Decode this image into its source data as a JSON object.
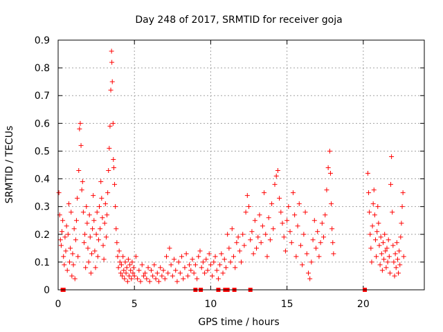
{
  "chart_data": {
    "type": "scatter",
    "title": "Day 248 of 2017, SRMTID for receiver goja",
    "xlabel": "GPS time / hours",
    "ylabel": "SRMTID / TECUs",
    "xlim": [
      0,
      24
    ],
    "ylim": [
      0,
      0.9
    ],
    "x_ticks": [
      0,
      5,
      10,
      15,
      20
    ],
    "y_ticks": [
      0,
      0.1,
      0.2,
      0.3,
      0.4,
      0.5,
      0.6,
      0.7,
      0.8,
      0.9
    ],
    "x_tick_labels": [
      "0",
      "5",
      "10",
      "15",
      "20"
    ],
    "y_tick_labels": [
      "0",
      "0.1",
      "0.2",
      "0.3",
      "0.4",
      "0.5",
      "0.6",
      "0.7",
      "0.8",
      "0.9"
    ],
    "grid": true,
    "marker": "+",
    "color": "#ff0000",
    "series": [
      {
        "name": "SRMTID",
        "points": [
          [
            0.05,
            0.35
          ],
          [
            0.1,
            0.27
          ],
          [
            0.15,
            0.18
          ],
          [
            0.2,
            0.16
          ],
          [
            0.25,
            0.21
          ],
          [
            0.3,
            0.25
          ],
          [
            0.35,
            0.12
          ],
          [
            0.4,
            0.09
          ],
          [
            0.45,
            0.19
          ],
          [
            0.5,
            0.14
          ],
          [
            0.55,
            0.23
          ],
          [
            0.6,
            0.07
          ],
          [
            0.65,
            0.2
          ],
          [
            0.7,
            0.31
          ],
          [
            0.75,
            0.1
          ],
          [
            0.8,
            0.15
          ],
          [
            0.85,
            0.28
          ],
          [
            0.9,
            0.05
          ],
          [
            0.95,
            0.13
          ],
          [
            1.0,
            0.09
          ],
          [
            1.05,
            0.22
          ],
          [
            1.1,
            0.04
          ],
          [
            1.15,
            0.18
          ],
          [
            1.2,
            0.25
          ],
          [
            1.25,
            0.33
          ],
          [
            1.3,
            0.12
          ],
          [
            1.35,
            0.43
          ],
          [
            1.4,
            0.58
          ],
          [
            1.45,
            0.6
          ],
          [
            1.5,
            0.52
          ],
          [
            1.55,
            0.36
          ],
          [
            1.6,
            0.39
          ],
          [
            1.65,
            0.28
          ],
          [
            1.7,
            0.17
          ],
          [
            1.75,
            0.2
          ],
          [
            1.8,
            0.08
          ],
          [
            1.85,
            0.3
          ],
          [
            1.9,
            0.24
          ],
          [
            1.95,
            0.15
          ],
          [
            2.0,
            0.1
          ],
          [
            2.05,
            0.27
          ],
          [
            2.1,
            0.19
          ],
          [
            2.15,
            0.06
          ],
          [
            2.2,
            0.13
          ],
          [
            2.25,
            0.22
          ],
          [
            2.3,
            0.34
          ],
          [
            2.35,
            0.25
          ],
          [
            2.4,
            0.14
          ],
          [
            2.45,
            0.08
          ],
          [
            2.5,
            0.2
          ],
          [
            2.55,
            0.28
          ],
          [
            2.6,
            0.12
          ],
          [
            2.65,
            0.18
          ],
          [
            2.7,
            0.3
          ],
          [
            2.75,
            0.22
          ],
          [
            2.8,
            0.39
          ],
          [
            2.85,
            0.33
          ],
          [
            2.9,
            0.26
          ],
          [
            2.95,
            0.16
          ],
          [
            3.0,
            0.11
          ],
          [
            3.05,
            0.24
          ],
          [
            3.1,
            0.31
          ],
          [
            3.15,
            0.19
          ],
          [
            3.2,
            0.27
          ],
          [
            3.25,
            0.35
          ],
          [
            3.3,
            0.43
          ],
          [
            3.35,
            0.51
          ],
          [
            3.4,
            0.59
          ],
          [
            3.45,
            0.72
          ],
          [
            3.5,
            0.86
          ],
          [
            3.52,
            0.82
          ],
          [
            3.55,
            0.75
          ],
          [
            3.6,
            0.6
          ],
          [
            3.62,
            0.47
          ],
          [
            3.65,
            0.44
          ],
          [
            3.7,
            0.38
          ],
          [
            3.75,
            0.3
          ],
          [
            3.8,
            0.22
          ],
          [
            3.85,
            0.17
          ],
          [
            3.9,
            0.12
          ],
          [
            3.95,
            0.08
          ],
          [
            4.0,
            0.14
          ],
          [
            4.05,
            0.1
          ],
          [
            4.1,
            0.06
          ],
          [
            4.15,
            0.09
          ],
          [
            4.2,
            0.05
          ],
          [
            4.25,
            0.12
          ],
          [
            4.3,
            0.07
          ],
          [
            4.35,
            0.04
          ],
          [
            4.4,
            0.1
          ],
          [
            4.45,
            0.06
          ],
          [
            4.5,
            0.08
          ],
          [
            4.55,
            0.03
          ],
          [
            4.6,
            0.11
          ],
          [
            4.65,
            0.05
          ],
          [
            4.7,
            0.09
          ],
          [
            4.75,
            0.07
          ],
          [
            4.8,
            0.04
          ],
          [
            4.85,
            0.1
          ],
          [
            4.9,
            0.06
          ],
          [
            4.95,
            0.08
          ],
          [
            5.0,
            0.05
          ],
          [
            5.1,
            0.12
          ],
          [
            5.2,
            0.04
          ],
          [
            5.3,
            0.07
          ],
          [
            5.4,
            0.03
          ],
          [
            5.5,
            0.09
          ],
          [
            5.6,
            0.05
          ],
          [
            5.7,
            0.06
          ],
          [
            5.8,
            0.04
          ],
          [
            5.9,
            0.08
          ],
          [
            6.0,
            0.03
          ],
          [
            6.1,
            0.07
          ],
          [
            6.2,
            0.05
          ],
          [
            6.3,
            0.09
          ],
          [
            6.4,
            0.04
          ],
          [
            6.5,
            0.06
          ],
          [
            6.6,
            0.03
          ],
          [
            6.7,
            0.08
          ],
          [
            6.8,
            0.05
          ],
          [
            6.9,
            0.07
          ],
          [
            7.0,
            0.04
          ],
          [
            7.1,
            0.12
          ],
          [
            7.2,
            0.06
          ],
          [
            7.3,
            0.15
          ],
          [
            7.4,
            0.09
          ],
          [
            7.5,
            0.05
          ],
          [
            7.6,
            0.11
          ],
          [
            7.7,
            0.07
          ],
          [
            7.8,
            0.03
          ],
          [
            7.9,
            0.1
          ],
          [
            8.0,
            0.06
          ],
          [
            8.1,
            0.12
          ],
          [
            8.2,
            0.04
          ],
          [
            8.3,
            0.08
          ],
          [
            8.4,
            0.13
          ],
          [
            8.5,
            0.05
          ],
          [
            8.6,
            0.09
          ],
          [
            8.7,
            0.07
          ],
          [
            8.8,
            0.11
          ],
          [
            8.9,
            0.06
          ],
          [
            9.0,
            0.09
          ],
          [
            9.1,
            0.04
          ],
          [
            9.2,
            0.12
          ],
          [
            9.3,
            0.14
          ],
          [
            9.4,
            0.08
          ],
          [
            9.5,
            0.1
          ],
          [
            9.6,
            0.06
          ],
          [
            9.7,
            0.11
          ],
          [
            9.8,
            0.07
          ],
          [
            9.9,
            0.13
          ],
          [
            10.0,
            0.09
          ],
          [
            10.1,
            0.05
          ],
          [
            10.2,
            0.1
          ],
          [
            10.3,
            0.12
          ],
          [
            10.4,
            0.07
          ],
          [
            10.5,
            0.04
          ],
          [
            10.6,
            0.09
          ],
          [
            10.7,
            0.13
          ],
          [
            10.8,
            0.06
          ],
          [
            10.9,
            0.11
          ],
          [
            11.0,
            0.08
          ],
          [
            11.1,
            0.2
          ],
          [
            11.2,
            0.15
          ],
          [
            11.3,
            0.1
          ],
          [
            11.4,
            0.22
          ],
          [
            11.5,
            0.12
          ],
          [
            11.6,
            0.08
          ],
          [
            11.7,
            0.17
          ],
          [
            11.8,
            0.19
          ],
          [
            11.9,
            0.14
          ],
          [
            12.0,
            0.1
          ],
          [
            12.1,
            0.2
          ],
          [
            12.2,
            0.16
          ],
          [
            12.3,
            0.28
          ],
          [
            12.4,
            0.34
          ],
          [
            12.5,
            0.3
          ],
          [
            12.6,
            0.18
          ],
          [
            12.7,
            0.21
          ],
          [
            12.8,
            0.13
          ],
          [
            12.9,
            0.25
          ],
          [
            13.0,
            0.15
          ],
          [
            13.1,
            0.19
          ],
          [
            13.2,
            0.27
          ],
          [
            13.3,
            0.17
          ],
          [
            13.4,
            0.23
          ],
          [
            13.5,
            0.35
          ],
          [
            13.6,
            0.2
          ],
          [
            13.7,
            0.12
          ],
          [
            13.8,
            0.26
          ],
          [
            13.9,
            0.18
          ],
          [
            14.0,
            0.31
          ],
          [
            14.1,
            0.22
          ],
          [
            14.2,
            0.38
          ],
          [
            14.3,
            0.41
          ],
          [
            14.4,
            0.43
          ],
          [
            14.5,
            0.33
          ],
          [
            14.6,
            0.28
          ],
          [
            14.7,
            0.24
          ],
          [
            14.8,
            0.19
          ],
          [
            14.9,
            0.14
          ],
          [
            15.0,
            0.25
          ],
          [
            15.1,
            0.3
          ],
          [
            15.2,
            0.21
          ],
          [
            15.3,
            0.17
          ],
          [
            15.4,
            0.35
          ],
          [
            15.5,
            0.27
          ],
          [
            15.6,
            0.12
          ],
          [
            15.7,
            0.23
          ],
          [
            15.8,
            0.31
          ],
          [
            15.9,
            0.16
          ],
          [
            16.0,
            0.09
          ],
          [
            16.1,
            0.2
          ],
          [
            16.2,
            0.28
          ],
          [
            16.3,
            0.13
          ],
          [
            16.4,
            0.06
          ],
          [
            16.5,
            0.04
          ],
          [
            16.6,
            0.1
          ],
          [
            16.7,
            0.18
          ],
          [
            16.8,
            0.25
          ],
          [
            16.9,
            0.15
          ],
          [
            17.0,
            0.21
          ],
          [
            17.1,
            0.12
          ],
          [
            17.2,
            0.17
          ],
          [
            17.3,
            0.24
          ],
          [
            17.4,
            0.19
          ],
          [
            17.5,
            0.27
          ],
          [
            17.6,
            0.36
          ],
          [
            17.7,
            0.44
          ],
          [
            17.8,
            0.5
          ],
          [
            17.85,
            0.42
          ],
          [
            17.9,
            0.31
          ],
          [
            17.95,
            0.22
          ],
          [
            18.0,
            0.17
          ],
          [
            18.05,
            0.13
          ],
          [
            20.3,
            0.42
          ],
          [
            20.35,
            0.35
          ],
          [
            20.4,
            0.28
          ],
          [
            20.45,
            0.2
          ],
          [
            20.5,
            0.15
          ],
          [
            20.55,
            0.1
          ],
          [
            20.6,
            0.23
          ],
          [
            20.65,
            0.31
          ],
          [
            20.7,
            0.36
          ],
          [
            20.75,
            0.27
          ],
          [
            20.8,
            0.18
          ],
          [
            20.85,
            0.12
          ],
          [
            20.9,
            0.21
          ],
          [
            20.95,
            0.3
          ],
          [
            21.0,
            0.24
          ],
          [
            21.05,
            0.16
          ],
          [
            21.1,
            0.09
          ],
          [
            21.15,
            0.19
          ],
          [
            21.2,
            0.13
          ],
          [
            21.25,
            0.07
          ],
          [
            21.3,
            0.17
          ],
          [
            21.35,
            0.11
          ],
          [
            21.4,
            0.2
          ],
          [
            21.45,
            0.14
          ],
          [
            21.5,
            0.08
          ],
          [
            21.55,
            0.15
          ],
          [
            21.6,
            0.1
          ],
          [
            21.65,
            0.18
          ],
          [
            21.7,
            0.12
          ],
          [
            21.75,
            0.06
          ],
          [
            21.8,
            0.38
          ],
          [
            21.85,
            0.48
          ],
          [
            21.9,
            0.28
          ],
          [
            21.95,
            0.16
          ],
          [
            22.0,
            0.1
          ],
          [
            22.05,
            0.05
          ],
          [
            22.1,
            0.13
          ],
          [
            22.15,
            0.08
          ],
          [
            22.2,
            0.17
          ],
          [
            22.25,
            0.11
          ],
          [
            22.3,
            0.06
          ],
          [
            22.35,
            0.14
          ],
          [
            22.4,
            0.09
          ],
          [
            22.45,
            0.19
          ],
          [
            22.5,
            0.24
          ],
          [
            22.55,
            0.3
          ],
          [
            22.6,
            0.35
          ],
          [
            22.65,
            0.12
          ]
        ]
      }
    ],
    "gap_markers_x": [
      0.3,
      0.35,
      9.0,
      9.35,
      10.5,
      10.95,
      11.1,
      11.55,
      12.6,
      20.1
    ]
  }
}
